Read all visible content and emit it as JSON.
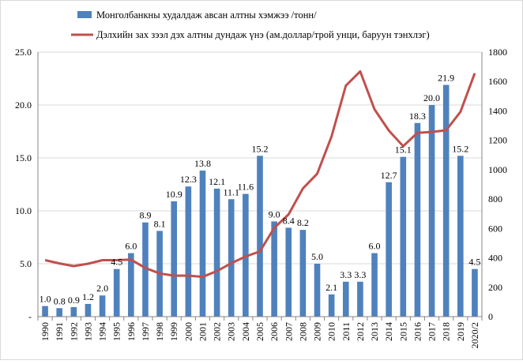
{
  "chart_data": {
    "type": "bar+line",
    "categories": [
      "1990",
      "1991",
      "1992",
      "1993",
      "1994",
      "1995",
      "1996",
      "1997",
      "1998",
      "1999",
      "2000",
      "2001",
      "2002",
      "2003",
      "2004",
      "2005",
      "2006",
      "2007",
      "2008",
      "2009",
      "2010",
      "2011",
      "2012",
      "2013",
      "2014",
      "2015",
      "2016",
      "2017",
      "2018",
      "2019",
      "2020/2"
    ],
    "series": [
      {
        "name": "Монголбанкны худалдаж авсан алтны хэмжээ /тонн/",
        "type": "bar",
        "axis": "left",
        "color": "#4F81BD",
        "values": [
          1.0,
          0.8,
          0.9,
          1.2,
          2.0,
          4.5,
          6.0,
          8.9,
          8.1,
          10.9,
          12.3,
          13.8,
          12.1,
          11.1,
          11.6,
          15.2,
          9.0,
          8.4,
          8.2,
          5.0,
          2.1,
          3.3,
          3.3,
          6.0,
          12.7,
          15.1,
          18.3,
          20.0,
          21.9,
          15.2,
          4.5
        ],
        "labels": [
          "1.0",
          "0.8",
          "0.9",
          "1.2",
          "2.0",
          "4.5",
          "6.0",
          "8.9",
          "8.1",
          "10.9",
          "12.3",
          "13.8",
          "12.1",
          "11.1",
          "11.6",
          "15.2",
          "9.0",
          "8.4",
          "8.2",
          "5.0",
          "2.1",
          "3.3",
          "3.3",
          "6.0",
          "12.7",
          "15.1",
          "18.3",
          "20.0",
          "21.9",
          "15.2",
          "4.5"
        ]
      },
      {
        "name": "Дэлхийн зах зээл дэх алтны дундаж үнэ (ам.доллар/трой унци, баруун тэнхлэг)",
        "type": "line",
        "axis": "right",
        "color": "#C0504D",
        "values": [
          384,
          362,
          344,
          360,
          384,
          384,
          388,
          331,
          294,
          279,
          279,
          271,
          310,
          363,
          409,
          444,
          604,
          696,
          872,
          972,
          1225,
          1572,
          1669,
          1411,
          1266,
          1160,
          1251,
          1257,
          1268,
          1393,
          1656
        ]
      }
    ],
    "y_left": {
      "min": 0,
      "max": 25,
      "ticks": [
        "-",
        "5.0",
        "10.0",
        "15.0",
        "20.0",
        "25.0"
      ],
      "tick_values": [
        0,
        5,
        10,
        15,
        20,
        25
      ]
    },
    "y_right": {
      "min": 0,
      "max": 1800,
      "ticks": [
        "0",
        "200",
        "400",
        "600",
        "800",
        "1000",
        "1200",
        "1400",
        "1600",
        "1800"
      ],
      "tick_values": [
        0,
        200,
        400,
        600,
        800,
        1000,
        1200,
        1400,
        1600,
        1800
      ]
    },
    "grid": true,
    "legend": "top"
  }
}
